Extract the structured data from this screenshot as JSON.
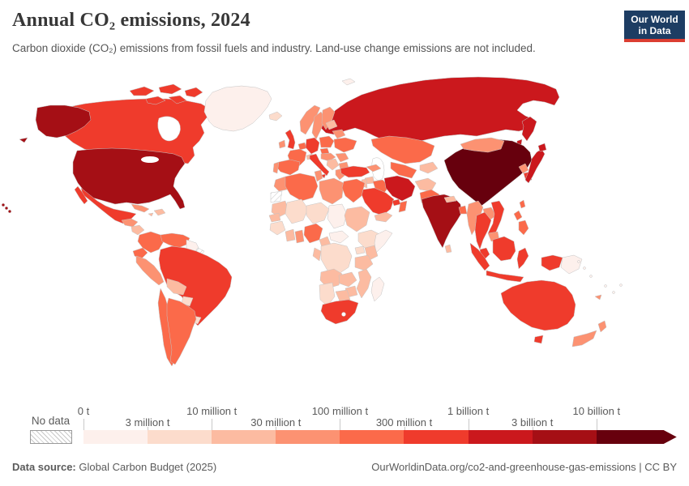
{
  "header": {
    "title": "Annual CO₂ emissions, 2024",
    "subtitle": "Carbon dioxide (CO₂) emissions from fossil fuels and industry. Land-use change emissions are not included.",
    "logo": {
      "line1": "Our World",
      "line2": "in Data"
    }
  },
  "legend": {
    "no_data_label": "No data",
    "ticks": [
      "0 t",
      "3 million t",
      "10 million t",
      "30 million t",
      "100 million t",
      "300 million t",
      "1 billion t",
      "3 billion t",
      "10 billion t"
    ]
  },
  "footer": {
    "source_label": "Data source:",
    "source_value": "Global Carbon Budget (2025)",
    "attribution": "OurWorldinData.org/co2-and-greenhouse-gas-emissions | CC BY"
  },
  "chart_data": {
    "type": "choropleth",
    "title": "Annual CO₂ emissions, 2024",
    "year": 2024,
    "unit": "tonnes of CO₂",
    "legend_scale": "log-binned",
    "bins": [
      {
        "range": "0 t – 3 million t",
        "color": "#fdf0ec"
      },
      {
        "range": "3 – 10 million t",
        "color": "#fcdccc"
      },
      {
        "range": "10 – 30 million t",
        "color": "#fcbba1"
      },
      {
        "range": "30 – 100 million t",
        "color": "#fc9272"
      },
      {
        "range": "100 – 300 million t",
        "color": "#fb6a4a"
      },
      {
        "range": "300 million – 1 billion t",
        "color": "#ef3b2c"
      },
      {
        "range": "1 – 3 billion t",
        "color": "#cb181d"
      },
      {
        "range": "3 – 10 billion t",
        "color": "#a50f15"
      },
      {
        "range": "> 10 billion t",
        "color": "#67000d"
      }
    ],
    "no_data": {
      "label": "No data",
      "fill": "hatch"
    },
    "countries": {
      "united-states": 8,
      "canada": 6,
      "greenland": 1,
      "mexico": 6,
      "guatemala": 4,
      "nicaragua": 3,
      "panama": 4,
      "cuba": 4,
      "hispaniola": 3,
      "jamaica": 3,
      "colombia": 5,
      "venezuela": 5,
      "guyana": 1,
      "french-guiana": 0,
      "ecuador": 5,
      "peru": 4,
      "brazil": 6,
      "bolivia": 3,
      "paraguay": 2,
      "uruguay": 2,
      "chile": 5,
      "argentina": 5,
      "iceland": 2,
      "united-kingdom": 6,
      "ireland": 4,
      "norway": 4,
      "sweden": 4,
      "finland": 4,
      "denmark": 4,
      "benelux": 5,
      "germany": 6,
      "france": 5,
      "spain": 5,
      "portugal": 4,
      "switzerland": 3,
      "italy": 6,
      "poland": 5,
      "czechia": 5,
      "austria-hungary": 4,
      "romania": 4,
      "balkans": 3,
      "bulgaria": 4,
      "greece": 4,
      "ukraine": 5,
      "belarus": 4,
      "baltics": 3,
      "svalbard": 1,
      "russia": 7,
      "kazakhstan": 5,
      "uzbekistan": 5,
      "kyrgyzstan": 3,
      "caucasus": 4,
      "turkey": 6,
      "syria": 3,
      "iraq": 5,
      "jordan": 3,
      "iran": 7,
      "saudi-arabia": 6,
      "uae": 6,
      "oman": 5,
      "yemen": 3,
      "afghanistan": 3,
      "pakistan": 5,
      "india": 8,
      "nepal": 3,
      "bangladesh": 5,
      "sri-lanka": 3,
      "china": 9,
      "mongolia": 4,
      "north-korea": 4,
      "south-korea": 6,
      "japan": 7,
      "taiwan": 5,
      "myanmar": 4,
      "laos": 4,
      "thailand": 6,
      "vietnam": 6,
      "cambodia": 4,
      "malaysia": 6,
      "indonesia": 6,
      "philippines": 5,
      "papua-new-guinea": 1,
      "australia": 6,
      "new-zealand": 4,
      "new-caledonia": 4,
      "pacific-islands": 1,
      "morocco": 4,
      "western-sahara": 0,
      "algeria": 5,
      "tunisia": 4,
      "libya": 4,
      "egypt": 5,
      "mauritania": 3,
      "mali": 2,
      "niger": 2,
      "chad": 1,
      "sudan": 3,
      "senegal": 3,
      "guinea": 2,
      "ivory-coast": 3,
      "ghana": 4,
      "nigeria": 5,
      "cameroon": 3,
      "central-african-republic": 1,
      "ethiopia": 2,
      "somalia": 1,
      "uganda": 2,
      "kenya": 3,
      "dr-congo": 2,
      "congo": 3,
      "tanzania": 3,
      "angola": 3,
      "zambia": 3,
      "mozambique": 3,
      "zimbabwe": 3,
      "botswana": 3,
      "namibia": 2,
      "south-africa": 6,
      "madagascar": 1
    }
  }
}
